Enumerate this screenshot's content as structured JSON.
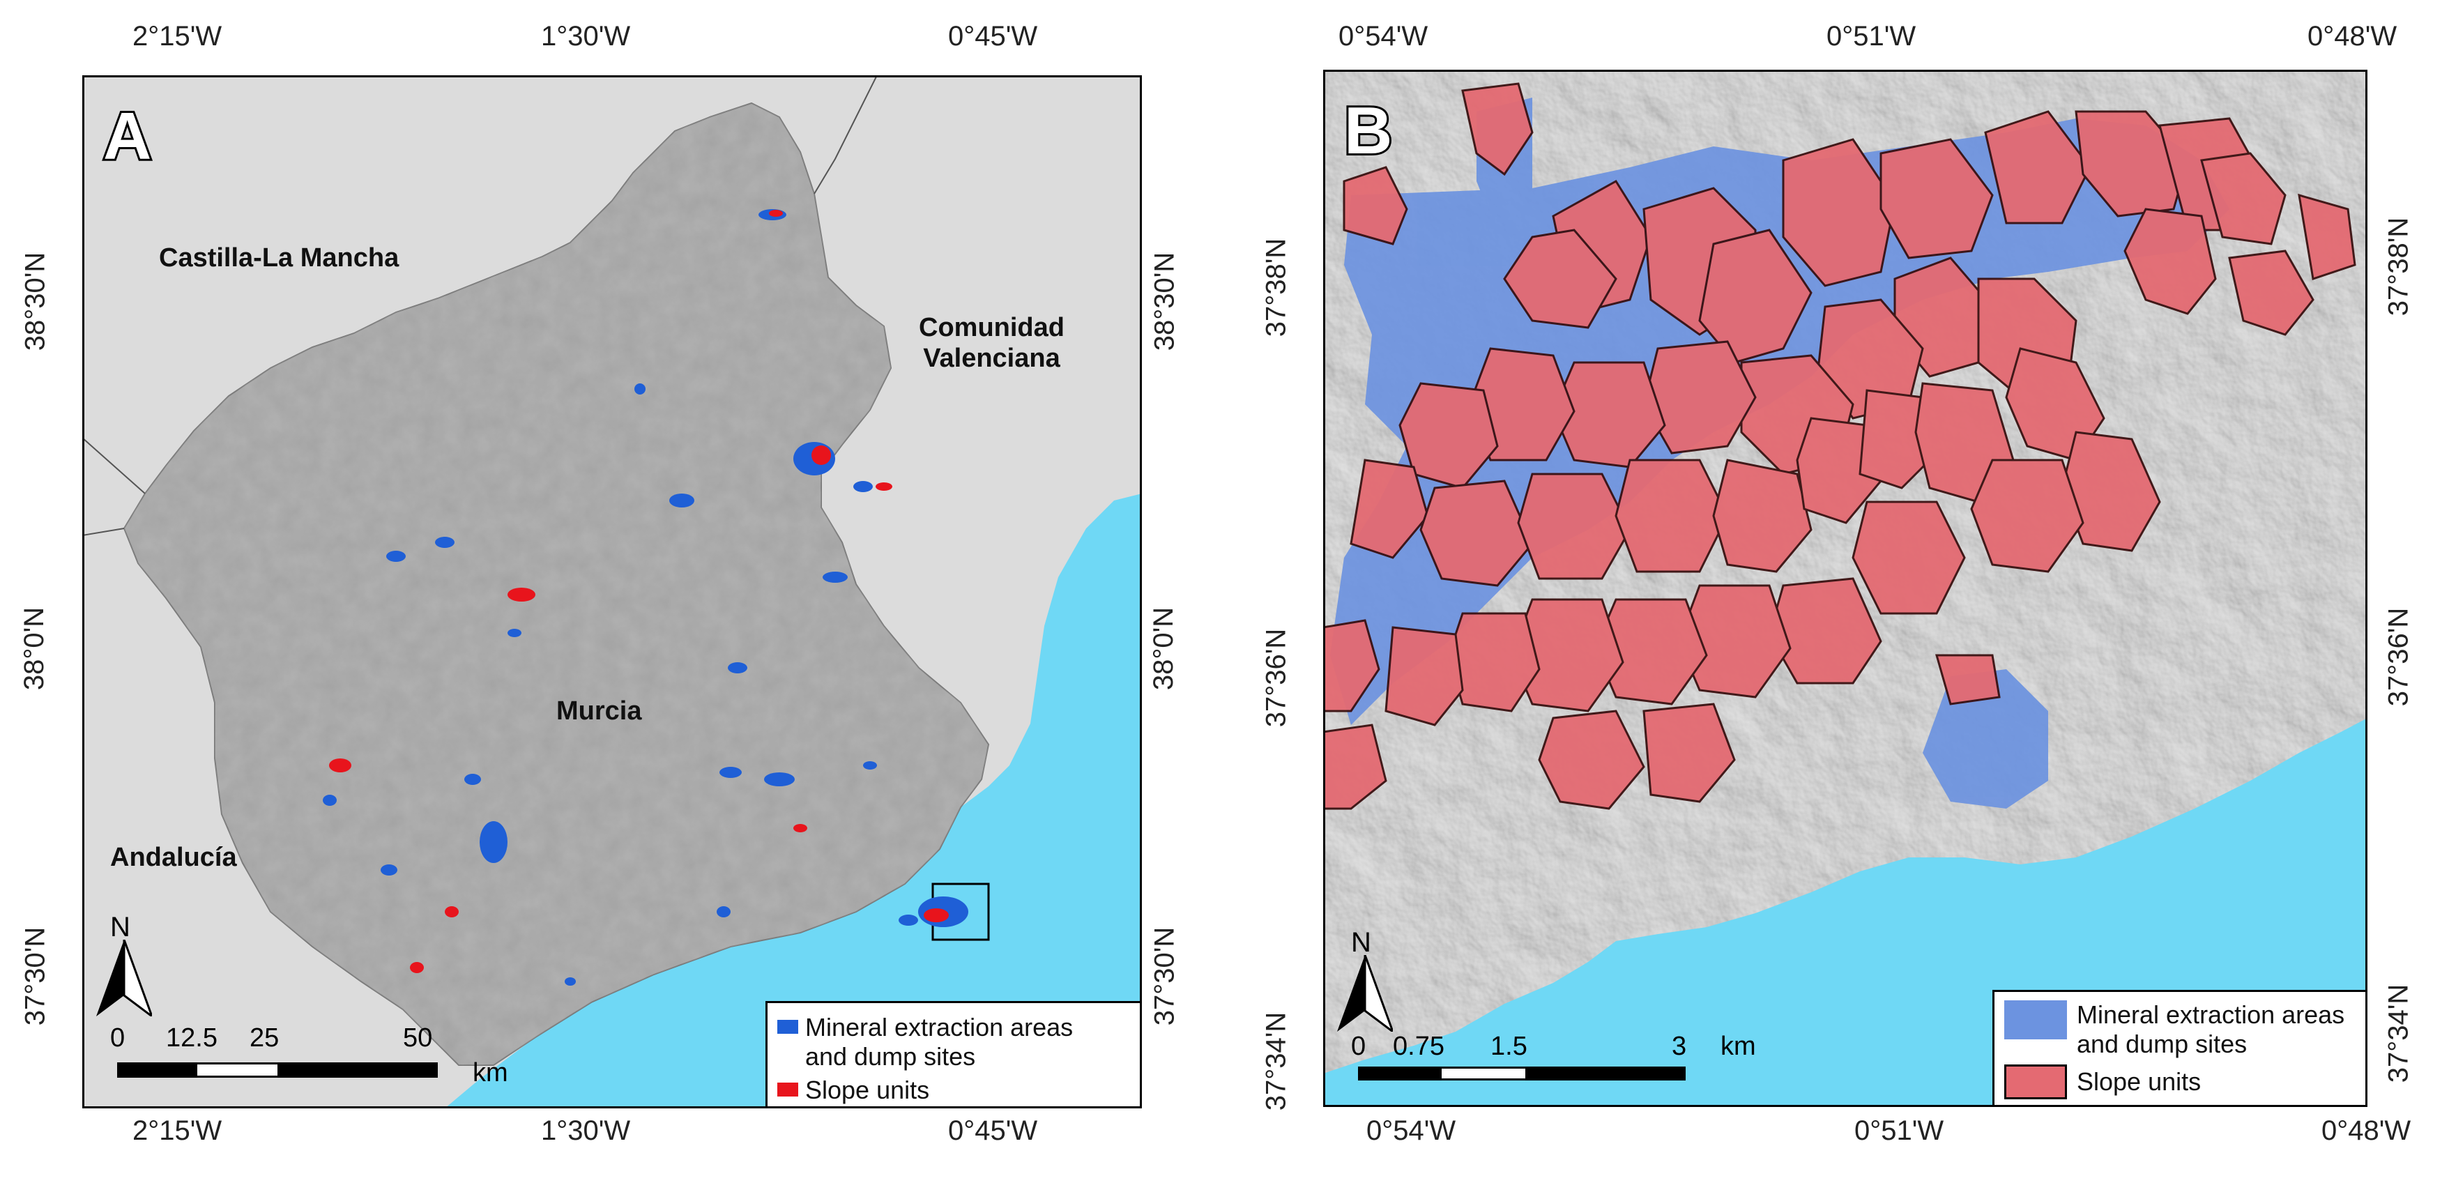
{
  "panel_a": {
    "letter": "A",
    "top_ticks": [
      "2°15'W",
      "1°30'W",
      "0°45'W"
    ],
    "bottom_ticks": [
      "2°15'W",
      "1°30'W",
      "0°45'W"
    ],
    "left_ticks": [
      "38°30'N",
      "38°0'N",
      "37°30'N"
    ],
    "right_ticks": [
      "38°30'N",
      "38°0'N",
      "37°30'N"
    ],
    "regions": {
      "castilla": "Castilla-La Mancha",
      "valenciana": "Comunidad\nValenciana",
      "murcia": "Murcia",
      "andalucia": "Andalucía"
    },
    "legend": {
      "mineral": "Mineral extraction areas\nand dump sites",
      "slope": "Slope units"
    },
    "scale": {
      "labels": [
        "0",
        "12.5",
        "25",
        "50"
      ],
      "unit": "km"
    },
    "north": "N",
    "colors": {
      "land": "#9c9c9c",
      "outside": "#dcdcdc",
      "sea": "#6fd8f5",
      "mineral": "#1f5fd6",
      "slope": "#e8141c"
    }
  },
  "panel_b": {
    "letter": "B",
    "top_ticks": [
      "0°54'W",
      "0°51'W",
      "0°48'W"
    ],
    "bottom_ticks": [
      "0°54'W",
      "0°51'W",
      "0°48'W"
    ],
    "left_ticks": [
      "37°38'N",
      "37°36'N",
      "37°34'N"
    ],
    "right_ticks": [
      "37°38'N",
      "37°36'N",
      "37°34'N"
    ],
    "legend": {
      "mineral": "Mineral extraction areas\nand dump sites",
      "slope": "Slope units"
    },
    "scale": {
      "labels": [
        "0",
        "0.75",
        "1.5",
        "3"
      ],
      "unit": "km"
    },
    "north": "N",
    "colors": {
      "land": "#b8b8b8",
      "sea": "#6fd8f5",
      "mineral": "#6c93e0",
      "slope": "#e46a72"
    }
  }
}
